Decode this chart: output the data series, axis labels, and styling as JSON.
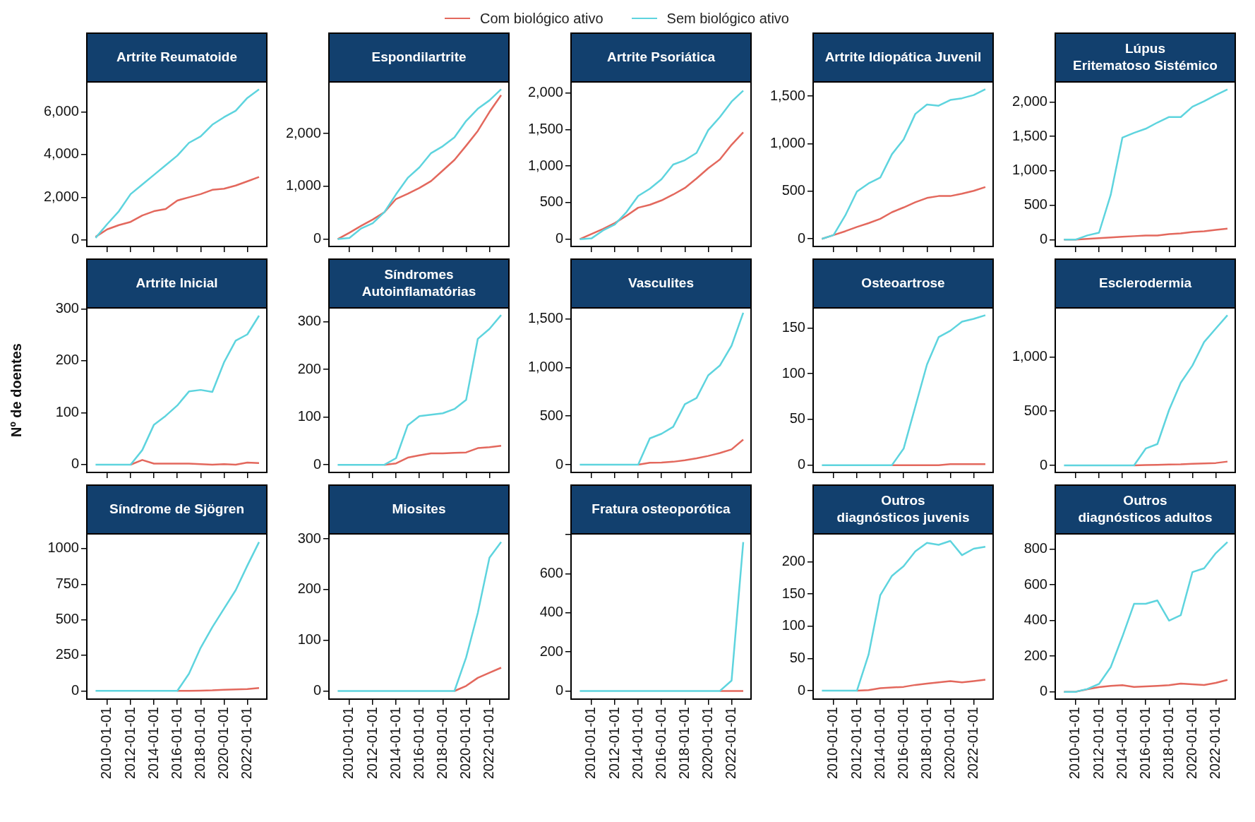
{
  "chart_data": [
    {
      "type": "line",
      "title": "Artrite Reumatoide",
      "legend": "top",
      "tick_labels": "y",
      "x": [
        "2009",
        "2010",
        "2011",
        "2012",
        "2013",
        "2014",
        "2015",
        "2016",
        "2017",
        "2018",
        "2019",
        "2020",
        "2021",
        "2022",
        "2023"
      ],
      "xlim": [
        "2008-04-01",
        "2023-09-01"
      ],
      "xticks": [
        "2010-01-01",
        "2012-01-01",
        "2014-01-01",
        "2016-01-01",
        "2018-01-01",
        "2020-01-01",
        "2022-01-01"
      ],
      "ylim": [
        -300,
        7400
      ],
      "yticks": [
        0,
        {
          "value": 2000,
          "label": "2,000"
        },
        {
          "value": 4000,
          "label": "4,000"
        },
        {
          "value": 6000,
          "label": "6,000"
        }
      ],
      "series": [
        {
          "name": "Com biológico ativo",
          "color": "#e3685d",
          "values": [
            150,
            500,
            700,
            850,
            1150,
            1350,
            1450,
            1850,
            2000,
            2150,
            2350,
            2400,
            2550,
            2750,
            2950
          ]
        },
        {
          "name": "Sem biológico ativo",
          "color": "#5ed4de",
          "values": [
            100,
            750,
            1350,
            2150,
            2600,
            3050,
            3500,
            3950,
            4550,
            4850,
            5400,
            5750,
            6050,
            6650,
            7050
          ]
        }
      ]
    },
    {
      "type": "line",
      "title": "Espondilartrite",
      "tick_labels": "y",
      "x": [
        "2009",
        "2010",
        "2011",
        "2012",
        "2013",
        "2014",
        "2015",
        "2016",
        "2017",
        "2018",
        "2019",
        "2020",
        "2021",
        "2022",
        "2023"
      ],
      "xlim": [
        "2008-04-01",
        "2023-09-01"
      ],
      "xticks": [
        "2010-01-01",
        "2012-01-01",
        "2014-01-01",
        "2016-01-01",
        "2018-01-01",
        "2020-01-01",
        "2022-01-01"
      ],
      "ylim": [
        -140,
        2980
      ],
      "yticks": [
        0,
        {
          "value": 1000,
          "label": "1,000"
        },
        {
          "value": 2000,
          "label": "2,000"
        }
      ],
      "series": [
        {
          "color": "#e3685d",
          "values": [
            0,
            120,
            250,
            370,
            510,
            760,
            860,
            970,
            1100,
            1300,
            1500,
            1770,
            2050,
            2410,
            2730
          ]
        },
        {
          "color": "#5ed4de",
          "values": [
            0,
            20,
            200,
            300,
            510,
            850,
            1160,
            1360,
            1630,
            1760,
            1930,
            2240,
            2470,
            2630,
            2840
          ]
        }
      ]
    },
    {
      "type": "line",
      "title": "Artrite Psoriática",
      "tick_labels": "y",
      "x": [
        "2009",
        "2010",
        "2011",
        "2012",
        "2013",
        "2014",
        "2015",
        "2016",
        "2017",
        "2018",
        "2019",
        "2020",
        "2021",
        "2022",
        "2023"
      ],
      "xlim": [
        "2008-04-01",
        "2023-09-01"
      ],
      "xticks": [
        "2010-01-01",
        "2012-01-01",
        "2014-01-01",
        "2016-01-01",
        "2018-01-01",
        "2020-01-01",
        "2022-01-01"
      ],
      "ylim": [
        -100,
        2150
      ],
      "yticks": [
        0,
        500,
        {
          "value": 1000,
          "label": "1,000"
        },
        {
          "value": 1500,
          "label": "1,500"
        },
        {
          "value": 2000,
          "label": "2,000"
        }
      ],
      "series": [
        {
          "color": "#e3685d",
          "values": [
            0,
            70,
            140,
            220,
            320,
            430,
            470,
            530,
            610,
            700,
            830,
            970,
            1090,
            1290,
            1460
          ]
        },
        {
          "color": "#5ed4de",
          "values": [
            0,
            10,
            120,
            200,
            370,
            590,
            690,
            820,
            1020,
            1080,
            1180,
            1490,
            1670,
            1880,
            2030
          ]
        }
      ]
    },
    {
      "type": "line",
      "title": "Artrite Idiopática Juvenil",
      "tick_labels": "y",
      "x": [
        "2009",
        "2010",
        "2011",
        "2012",
        "2013",
        "2014",
        "2015",
        "2016",
        "2017",
        "2018",
        "2019",
        "2020",
        "2021",
        "2022",
        "2023"
      ],
      "xlim": [
        "2008-04-01",
        "2023-09-01"
      ],
      "xticks": [
        "2010-01-01",
        "2012-01-01",
        "2014-01-01",
        "2016-01-01",
        "2018-01-01",
        "2020-01-01",
        "2022-01-01"
      ],
      "ylim": [
        -80,
        1650
      ],
      "yticks": [
        0,
        500,
        {
          "value": 1000,
          "label": "1,000"
        },
        {
          "value": 1500,
          "label": "1,500"
        }
      ],
      "series": [
        {
          "color": "#e3685d",
          "values": [
            0,
            40,
            80,
            125,
            165,
            210,
            280,
            330,
            385,
            430,
            450,
            450,
            475,
            505,
            545
          ]
        },
        {
          "color": "#5ed4de",
          "values": [
            0,
            40,
            245,
            497,
            583,
            644,
            890,
            1045,
            1313,
            1413,
            1400,
            1460,
            1478,
            1512,
            1573
          ]
        }
      ]
    },
    {
      "type": "line",
      "title": "Lúpus Eritematoso Sistémico",
      "tick_labels": "y",
      "x": [
        "2009",
        "2010",
        "2011",
        "2012",
        "2013",
        "2014",
        "2015",
        "2016",
        "2017",
        "2018",
        "2019",
        "2020",
        "2021",
        "2022",
        "2023"
      ],
      "xlim": [
        "2008-04-01",
        "2023-09-01"
      ],
      "xticks": [
        "2010-01-01",
        "2012-01-01",
        "2014-01-01",
        "2016-01-01",
        "2018-01-01",
        "2020-01-01",
        "2022-01-01"
      ],
      "ylim": [
        -100,
        2290
      ],
      "yticks": [
        0,
        500,
        {
          "value": 1000,
          "label": "1,000"
        },
        {
          "value": 1500,
          "label": "1,500"
        },
        {
          "value": 2000,
          "label": "2,000"
        }
      ],
      "series": [
        {
          "color": "#e3685d",
          "values": [
            0,
            0,
            10,
            20,
            30,
            40,
            50,
            60,
            60,
            80,
            90,
            110,
            120,
            140,
            160
          ]
        },
        {
          "color": "#5ed4de",
          "values": [
            0,
            0,
            60,
            100,
            650,
            1480,
            1550,
            1610,
            1700,
            1780,
            1780,
            1930,
            2010,
            2100,
            2180
          ]
        }
      ]
    },
    {
      "type": "line",
      "title": "Artrite Inicial",
      "ylabel": "Nº de doentes",
      "tick_labels": "y",
      "x": [
        "2009",
        "2010",
        "2011",
        "2012",
        "2013",
        "2014",
        "2015",
        "2016",
        "2017",
        "2018",
        "2019",
        "2020",
        "2021",
        "2022",
        "2023"
      ],
      "xlim": [
        "2008-04-01",
        "2023-09-01"
      ],
      "xticks": [
        "2010-01-01",
        "2012-01-01",
        "2014-01-01",
        "2016-01-01",
        "2018-01-01",
        "2020-01-01",
        "2022-01-01"
      ],
      "ylim": [
        -15,
        302
      ],
      "yticks": [
        0,
        100,
        200,
        300
      ],
      "series": [
        {
          "color": "#e3685d",
          "values": [
            null,
            null,
            null,
            0,
            9,
            2,
            2,
            2,
            2,
            1,
            0,
            1,
            0,
            4,
            3
          ]
        },
        {
          "color": "#5ed4de",
          "values": [
            0,
            0,
            0,
            0,
            28,
            77,
            94,
            114,
            141,
            144,
            140,
            197,
            239,
            251,
            287
          ]
        }
      ]
    },
    {
      "type": "line",
      "title": "Síndromes Autoinflamatórias",
      "tick_labels": "y",
      "x": [
        "2009",
        "2010",
        "2011",
        "2012",
        "2013",
        "2014",
        "2015",
        "2016",
        "2017",
        "2018",
        "2019",
        "2020",
        "2021",
        "2022",
        "2023"
      ],
      "xlim": [
        "2008-04-01",
        "2023-09-01"
      ],
      "xticks": [
        "2010-01-01",
        "2012-01-01",
        "2014-01-01",
        "2016-01-01",
        "2018-01-01",
        "2020-01-01",
        "2022-01-01"
      ],
      "ylim": [
        -16,
        329
      ],
      "yticks": [
        0,
        100,
        200,
        300
      ],
      "series": [
        {
          "color": "#e3685d",
          "values": [
            null,
            null,
            null,
            null,
            0,
            3,
            15,
            20,
            24,
            24,
            25,
            26,
            35,
            37,
            40
          ]
        },
        {
          "color": "#5ed4de",
          "values": [
            0,
            0,
            0,
            0,
            0,
            14,
            83,
            102,
            105,
            108,
            117,
            136,
            264,
            285,
            314
          ]
        }
      ]
    },
    {
      "type": "line",
      "title": "Vasculites",
      "tick_labels": "y",
      "x": [
        "2009",
        "2010",
        "2011",
        "2012",
        "2013",
        "2014",
        "2015",
        "2016",
        "2017",
        "2018",
        "2019",
        "2020",
        "2021",
        "2022",
        "2023"
      ],
      "xlim": [
        "2008-04-01",
        "2023-09-01"
      ],
      "xticks": [
        "2010-01-01",
        "2012-01-01",
        "2014-01-01",
        "2016-01-01",
        "2018-01-01",
        "2020-01-01",
        "2022-01-01"
      ],
      "ylim": [
        -80,
        1614
      ],
      "yticks": [
        0,
        500,
        {
          "value": 1000,
          "label": "1,000"
        },
        {
          "value": 1500,
          "label": "1,500"
        }
      ],
      "series": [
        {
          "color": "#e3685d",
          "values": [
            null,
            null,
            null,
            null,
            null,
            0,
            20,
            22,
            30,
            45,
            65,
            90,
            120,
            157,
            258
          ]
        },
        {
          "color": "#5ed4de",
          "values": [
            0,
            0,
            0,
            0,
            0,
            0,
            271,
            318,
            390,
            623,
            686,
            920,
            1021,
            1225,
            1564
          ]
        }
      ]
    },
    {
      "type": "line",
      "title": "Osteoartrose",
      "tick_labels": "y",
      "x": [
        "2009",
        "2010",
        "2011",
        "2012",
        "2013",
        "2014",
        "2015",
        "2016",
        "2017",
        "2018",
        "2019",
        "2020",
        "2021",
        "2022",
        "2023"
      ],
      "xlim": [
        "2008-04-01",
        "2023-09-01"
      ],
      "xticks": [
        "2010-01-01",
        "2012-01-01",
        "2014-01-01",
        "2016-01-01",
        "2018-01-01",
        "2020-01-01",
        "2022-01-01"
      ],
      "ylim": [
        -8,
        172
      ],
      "yticks": [
        0,
        50,
        100,
        150
      ],
      "series": [
        {
          "color": "#e3685d",
          "values": [
            null,
            null,
            null,
            null,
            null,
            null,
            0,
            0,
            0,
            0,
            0,
            1,
            1,
            1,
            1
          ]
        },
        {
          "color": "#5ed4de",
          "values": [
            0,
            0,
            0,
            0,
            0,
            0,
            0,
            18,
            64,
            110,
            140,
            147,
            157,
            160,
            164
          ]
        }
      ]
    },
    {
      "type": "line",
      "title": "Esclerodermia",
      "tick_labels": "y",
      "x": [
        "2009",
        "2010",
        "2011",
        "2012",
        "2013",
        "2014",
        "2015",
        "2016",
        "2017",
        "2018",
        "2019",
        "2020",
        "2021",
        "2022",
        "2023"
      ],
      "xlim": [
        "2008-04-01",
        "2023-09-01"
      ],
      "xticks": [
        "2010-01-01",
        "2012-01-01",
        "2014-01-01",
        "2016-01-01",
        "2018-01-01",
        "2020-01-01",
        "2022-01-01"
      ],
      "ylim": [
        -65,
        1451
      ],
      "yticks": [
        0,
        500,
        {
          "value": 1000,
          "label": "1,000"
        }
      ],
      "series": [
        {
          "color": "#e3685d",
          "values": [
            null,
            null,
            null,
            null,
            null,
            null,
            0,
            3,
            5,
            8,
            10,
            15,
            18,
            22,
            35
          ]
        },
        {
          "color": "#5ed4de",
          "values": [
            0,
            0,
            0,
            0,
            0,
            0,
            0,
            155,
            197,
            511,
            761,
            920,
            1136,
            1261,
            1383
          ]
        }
      ]
    },
    {
      "type": "line",
      "title": "Síndrome de Sjögren",
      "x": [
        "2009",
        "2010",
        "2011",
        "2012",
        "2013",
        "2014",
        "2015",
        "2016",
        "2017",
        "2018",
        "2019",
        "2020",
        "2021",
        "2022",
        "2023"
      ],
      "xlim": [
        "2008-04-01",
        "2023-09-01"
      ],
      "xticks": [
        "2010-01-01",
        "2012-01-01",
        "2014-01-01",
        "2016-01-01",
        "2018-01-01",
        "2020-01-01",
        "2022-01-01"
      ],
      "ylim": [
        -58,
        1104
      ],
      "yticks": [
        0,
        250,
        500,
        750,
        1000
      ],
      "series": [
        {
          "color": "#e3685d",
          "values": [
            null,
            null,
            null,
            null,
            null,
            null,
            null,
            0,
            0,
            2,
            4,
            8,
            10,
            13,
            20
          ]
        },
        {
          "color": "#5ed4de",
          "values": [
            0,
            0,
            0,
            0,
            0,
            0,
            0,
            0,
            121,
            303,
            448,
            578,
            708,
            881,
            1046
          ]
        }
      ]
    },
    {
      "type": "line",
      "title": "Miosites",
      "x": [
        "2009",
        "2010",
        "2011",
        "2012",
        "2013",
        "2014",
        "2015",
        "2016",
        "2017",
        "2018",
        "2019",
        "2020",
        "2021",
        "2022",
        "2023"
      ],
      "xlim": [
        "2008-04-01",
        "2023-09-01"
      ],
      "xticks": [
        "2010-01-01",
        "2012-01-01",
        "2014-01-01",
        "2016-01-01",
        "2018-01-01",
        "2020-01-01",
        "2022-01-01"
      ],
      "ylim": [
        -16,
        310
      ],
      "yticks": [
        0,
        100,
        200,
        300
      ],
      "series": [
        {
          "color": "#e3685d",
          "values": [
            null,
            null,
            null,
            null,
            null,
            null,
            null,
            null,
            null,
            null,
            0,
            10,
            26,
            36,
            46
          ]
        },
        {
          "color": "#5ed4de",
          "values": [
            0,
            0,
            0,
            0,
            0,
            0,
            0,
            0,
            0,
            0,
            0,
            66,
            154,
            263,
            294
          ]
        }
      ]
    },
    {
      "type": "line",
      "title": "Fratura osteoporótica",
      "x": [
        "2009",
        "2010",
        "2011",
        "2012",
        "2013",
        "2014",
        "2015",
        "2016",
        "2017",
        "2018",
        "2019",
        "2020",
        "2021",
        "2022",
        "2023"
      ],
      "xlim": [
        "2008-04-01",
        "2023-09-01"
      ],
      "xticks": [
        "2010-01-01",
        "2012-01-01",
        "2014-01-01",
        "2016-01-01",
        "2018-01-01",
        "2020-01-01",
        "2022-01-01"
      ],
      "ylim": [
        -42,
        804
      ],
      "yticks": [
        0,
        200,
        400,
        600,
        {
          "value": 800,
          "label": null
        }
      ],
      "series": [
        {
          "color": "#e3685d",
          "values": [
            null,
            null,
            null,
            null,
            null,
            null,
            null,
            null,
            null,
            null,
            null,
            null,
            0,
            0,
            0
          ]
        },
        {
          "color": "#5ed4de",
          "values": [
            0,
            0,
            0,
            0,
            0,
            0,
            0,
            0,
            0,
            0,
            0,
            0,
            0,
            53,
            762
          ]
        }
      ]
    },
    {
      "type": "line",
      "title": "Outros diagnósticos juvenis",
      "x": [
        "2009",
        "2010",
        "2011",
        "2012",
        "2013",
        "2014",
        "2015",
        "2016",
        "2017",
        "2018",
        "2019",
        "2020",
        "2021",
        "2022",
        "2023"
      ],
      "xlim": [
        "2008-04-01",
        "2023-09-01"
      ],
      "xticks": [
        "2010-01-01",
        "2012-01-01",
        "2014-01-01",
        "2016-01-01",
        "2018-01-01",
        "2020-01-01",
        "2022-01-01"
      ],
      "ylim": [
        -13,
        243
      ],
      "yticks": [
        0,
        50,
        100,
        150,
        200
      ],
      "series": [
        {
          "color": "#e3685d",
          "values": [
            null,
            null,
            null,
            0,
            1,
            4,
            5,
            6,
            9,
            11,
            13,
            15,
            13,
            15,
            17
          ]
        },
        {
          "color": "#5ed4de",
          "values": [
            0,
            0,
            0,
            0,
            56,
            148,
            178,
            193,
            216,
            229,
            226,
            232,
            210,
            220,
            223
          ]
        }
      ]
    },
    {
      "type": "line",
      "title": "Outros diagnósticos adultos",
      "x": [
        "2009",
        "2010",
        "2011",
        "2012",
        "2013",
        "2014",
        "2015",
        "2016",
        "2017",
        "2018",
        "2019",
        "2020",
        "2021",
        "2022",
        "2023"
      ],
      "xlim": [
        "2008-04-01",
        "2023-09-01"
      ],
      "xticks": [
        "2010-01-01",
        "2012-01-01",
        "2014-01-01",
        "2016-01-01",
        "2018-01-01",
        "2020-01-01",
        "2022-01-01"
      ],
      "ylim": [
        -41,
        885
      ],
      "yticks": [
        0,
        200,
        400,
        600,
        800
      ],
      "series": [
        {
          "color": "#e3685d",
          "values": [
            0,
            0,
            14,
            26,
            33,
            37,
            27,
            30,
            33,
            37,
            46,
            42,
            38,
            50,
            67
          ]
        },
        {
          "color": "#5ed4de",
          "values": [
            0,
            0,
            16,
            44,
            138,
            309,
            493,
            493,
            512,
            399,
            429,
            671,
            692,
            777,
            839
          ]
        }
      ]
    }
  ]
}
